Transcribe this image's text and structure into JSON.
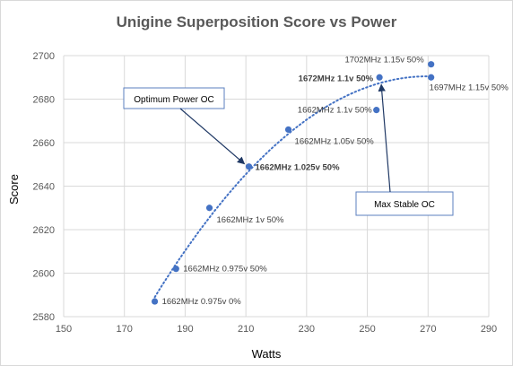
{
  "chart_data": {
    "type": "scatter",
    "title": "Unigine Superposition Score vs Power",
    "xlabel": "Watts",
    "ylabel": "Score",
    "xlim": [
      150,
      290
    ],
    "ylim": [
      2580,
      2700
    ],
    "x_ticks": [
      150,
      170,
      190,
      210,
      230,
      250,
      270,
      290
    ],
    "y_ticks": [
      2580,
      2600,
      2620,
      2640,
      2660,
      2680,
      2700
    ],
    "grid": "vertical and horizontal",
    "legend": "none",
    "trendline": "polynomial, dotted",
    "marker_color": "#4472c4",
    "series": [
      {
        "points": [
          {
            "x": 180,
            "y": 2587,
            "label": "1662MHz 0.975v 0%",
            "bold": false
          },
          {
            "x": 187,
            "y": 2602,
            "label": "1662MHz 0.975v 50%",
            "bold": false
          },
          {
            "x": 198,
            "y": 2630,
            "label": "1662MHz 1v 50%",
            "bold": false
          },
          {
            "x": 211,
            "y": 2649,
            "label": "1662MHz 1.025v 50%",
            "bold": true
          },
          {
            "x": 224,
            "y": 2666,
            "label": "1662MHz 1.05v 50%",
            "bold": false
          },
          {
            "x": 253,
            "y": 2675,
            "label": "1662MHz 1.1v 50%",
            "bold": false
          },
          {
            "x": 254,
            "y": 2690,
            "label": "1672MHz 1.1v 50%",
            "bold": true
          },
          {
            "x": 271,
            "y": 2690,
            "label": "1697MHz 1.15v 50%",
            "bold": false
          },
          {
            "x": 271,
            "y": 2696,
            "label": "1702MHz 1.15v 50%",
            "bold": false
          }
        ]
      }
    ],
    "annotations": [
      {
        "text": "Optimum Power OC",
        "points_to": {
          "x": 211,
          "y": 2649
        }
      },
      {
        "text": "Max Stable OC",
        "points_to": {
          "x": 254,
          "y": 2690
        }
      }
    ]
  }
}
